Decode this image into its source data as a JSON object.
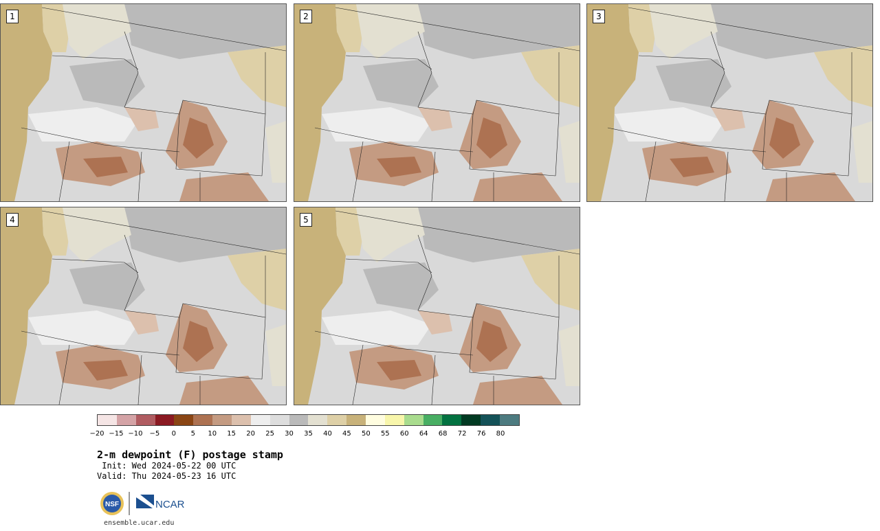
{
  "panels": [
    {
      "label": "1"
    },
    {
      "label": "2"
    },
    {
      "label": "3"
    },
    {
      "label": "4"
    },
    {
      "label": "5"
    }
  ],
  "colorbar": {
    "colors": [
      "#f5e5e5",
      "#d4a3a6",
      "#b05c61",
      "#8b1a22",
      "#8a4514",
      "#ad7252",
      "#c49b82",
      "#dcc0ad",
      "#eeeeee",
      "#dddddd",
      "#bababa",
      "#e3e0d1",
      "#ded0a7",
      "#c8b27a",
      "#fffde0",
      "#f8f6ab",
      "#a9dc8e",
      "#48ae63",
      "#037241",
      "#013a22",
      "#145258",
      "#4d7b80"
    ],
    "tick_labels": [
      "−20",
      "−15",
      "−10",
      "−5",
      "0",
      "5",
      "10",
      "15",
      "20",
      "25",
      "30",
      "35",
      "40",
      "45",
      "50",
      "55",
      "60",
      "64",
      "68",
      "72",
      "76",
      "80"
    ]
  },
  "title": "2-m dewpoint (F) postage stamp",
  "init": " Init: Wed 2024-05-22 00 UTC",
  "valid": "Valid: Thu 2024-05-23 16 UTC",
  "logos": {
    "nsf": "NSF",
    "ncar": "NCAR"
  },
  "site": "ensemble.ucar.edu"
}
